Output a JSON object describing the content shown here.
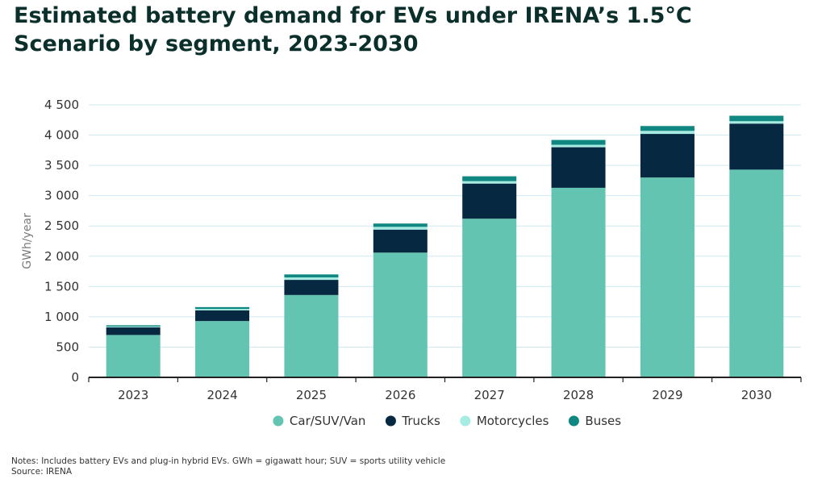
{
  "title_lines": [
    "Estimated battery demand for EVs under IRENA’s 1.5°C",
    "Scenario by segment, 2023-2030"
  ],
  "notes": "Notes: Includes battery EVs and plug-in hybrid EVs. GWh = gigawatt hour; SUV = sports utility vehicle",
  "source": "Source: IRENA",
  "chart_data": {
    "type": "bar",
    "stacked": true,
    "title": "Estimated battery demand for EVs under IRENA’s 1.5°C Scenario by segment, 2023-2030",
    "xlabel": "",
    "ylabel": "GWh/year",
    "ylim": [
      0,
      4500
    ],
    "yticks": [
      0,
      500,
      1000,
      1500,
      2000,
      2500,
      3000,
      3500,
      4000,
      4500
    ],
    "ytick_labels": [
      "0",
      "500",
      "1 000",
      "1 500",
      "2 000",
      "2 500",
      "3 000",
      "3 500",
      "4 000",
      "4 500"
    ],
    "grid": true,
    "legend_position": "bottom",
    "categories": [
      "2023",
      "2024",
      "2025",
      "2026",
      "2027",
      "2028",
      "2029",
      "2030"
    ],
    "series": [
      {
        "name": "Car/SUV/Van",
        "color": "#62c4b1",
        "values": [
          700,
          930,
          1360,
          2060,
          2620,
          3130,
          3300,
          3430
        ]
      },
      {
        "name": "Trucks",
        "color": "#062840",
        "values": [
          125,
          175,
          250,
          380,
          580,
          670,
          720,
          760
        ]
      },
      {
        "name": "Motorcycles",
        "color": "#a6ece2",
        "values": [
          15,
          25,
          40,
          45,
          40,
          40,
          50,
          40
        ]
      },
      {
        "name": "Buses",
        "color": "#108781",
        "values": [
          20,
          30,
          50,
          55,
          80,
          80,
          80,
          90
        ]
      }
    ]
  }
}
